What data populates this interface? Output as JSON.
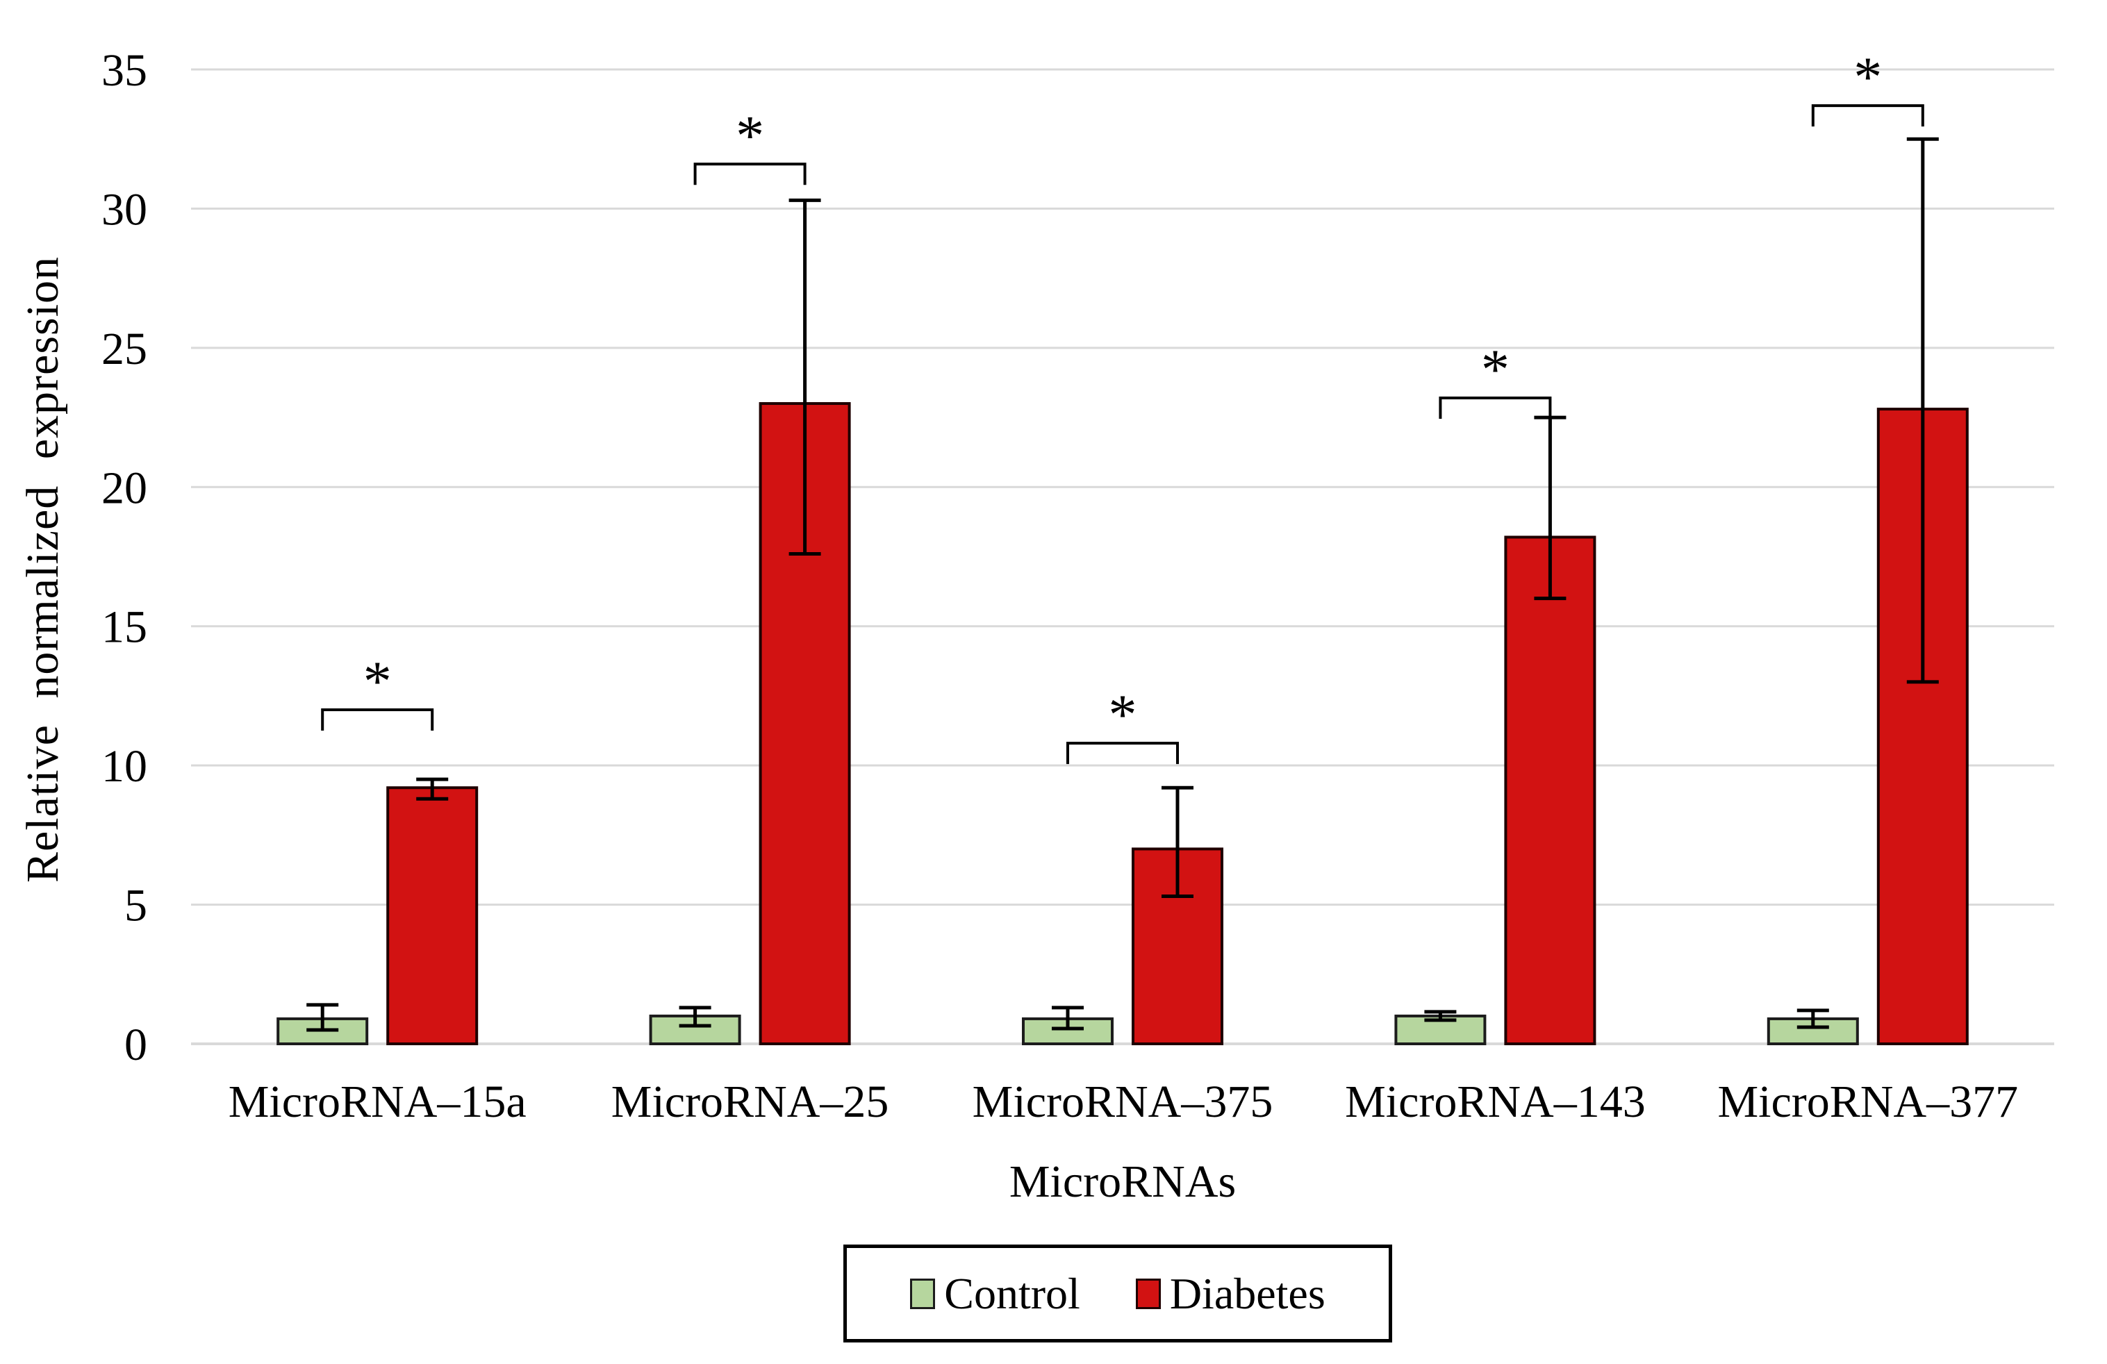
{
  "figure": {
    "background": "#ffffff"
  },
  "chart_data": {
    "type": "bar",
    "title": "",
    "xlabel": "MicroRNAs",
    "ylabel": "Relative normalized expression",
    "ylim": [
      0,
      35
    ],
    "yticks": [
      0,
      5,
      10,
      15,
      20,
      25,
      30,
      35
    ],
    "grid": true,
    "gridline_color": "#d9d9d9",
    "legend_position": "bottom",
    "categories": [
      "MicroRNA–15a",
      "MicroRNA–25",
      "MicroRNA–375",
      "MicroRNA–143",
      "MicroRNA–377"
    ],
    "series": [
      {
        "name": "Control",
        "color": "#b6d69e",
        "border_color": "#1c1c1c",
        "values": [
          0.9,
          1.0,
          0.9,
          1.0,
          0.9
        ],
        "error_plus": [
          0.5,
          0.3,
          0.4,
          0.15,
          0.3
        ],
        "error_minus": [
          0.4,
          0.35,
          0.35,
          0.15,
          0.3
        ]
      },
      {
        "name": "Diabetes",
        "color": "#d21212",
        "border_color": "#1f0000",
        "values": [
          9.2,
          23.0,
          7.0,
          18.2,
          22.8
        ],
        "error_plus": [
          0.3,
          7.3,
          2.2,
          4.3,
          9.7
        ],
        "error_minus": [
          0.4,
          5.4,
          1.7,
          2.2,
          9.8
        ]
      }
    ],
    "significance": {
      "symbol": "*",
      "bracket_y": [
        12.0,
        31.6,
        10.8,
        23.2,
        33.7
      ]
    }
  }
}
